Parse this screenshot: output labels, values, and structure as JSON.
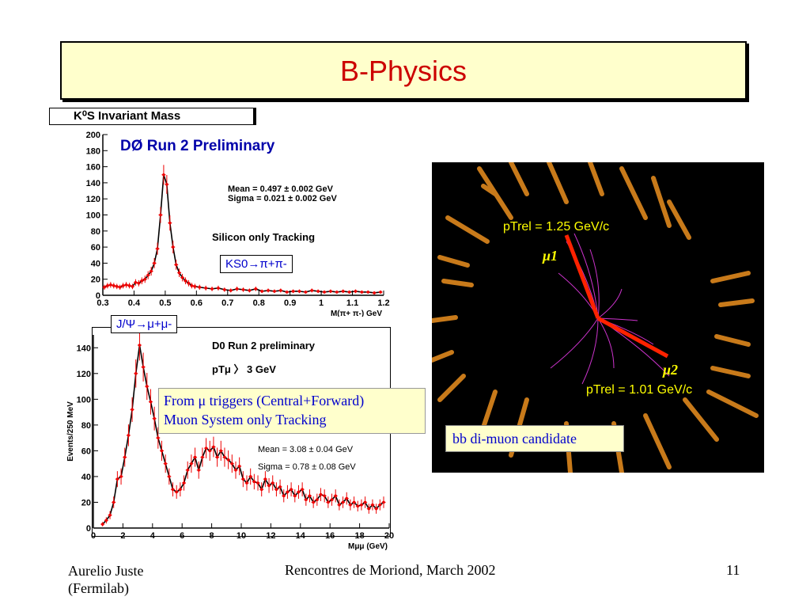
{
  "slide": {
    "title": "B-Physics",
    "footer": {
      "author": "Aurelio Juste",
      "affiliation": "(Fermilab)",
      "event": "Rencontres de Moriond, March 2002",
      "page": "11"
    }
  },
  "kshort_panel": {
    "header": "K⁰S Invariant Mass",
    "box_label": "KS0→π+π-"
  },
  "jpsi_panel": {
    "box_label": "J/Ψ→μ+μ-",
    "note_line1": "From μ triggers (Central+Forward)",
    "note_line2": "Muon System only Tracking"
  },
  "event_display": {
    "label_mu1": "μ1",
    "label_mu2": "μ2",
    "ptrel1": "pTrel = 1.25 GeV/c",
    "ptrel2": "pTrel = 1.01 GeV/c",
    "caption": "bb di-muon candidate",
    "colors": {
      "background": "#000000",
      "muon": "#ff2200",
      "track": "#cc33cc",
      "calo": "#c87a1a"
    }
  },
  "chart_data": [
    {
      "type": "scatter",
      "title": "DØ Run 2 Preliminary",
      "xlabel": "M(π+ π-) GeV",
      "ylabel": "",
      "xlim": [
        0.3,
        1.2
      ],
      "ylim": [
        0,
        200
      ],
      "xticks": [
        "0.3",
        "0.4",
        "0.5",
        "0.6",
        "0.7",
        "0.8",
        "0.9",
        "1",
        "1.1",
        "1.2"
      ],
      "yticks": [
        "0",
        "20",
        "40",
        "60",
        "80",
        "100",
        "120",
        "140",
        "160",
        "180",
        "200"
      ],
      "annotations": [
        "Mean = 0.497 ± 0.002 GeV",
        "Sigma = 0.021 ± 0.002 GeV",
        "Silicon only Tracking"
      ],
      "series": [
        {
          "x": [
            0.305,
            0.315,
            0.325,
            0.335,
            0.345,
            0.355,
            0.365,
            0.375,
            0.385,
            0.395,
            0.405,
            0.415,
            0.425,
            0.435,
            0.445,
            0.455,
            0.465,
            0.475,
            0.485,
            0.495,
            0.505,
            0.515,
            0.525,
            0.535,
            0.545,
            0.555,
            0.565,
            0.575,
            0.585,
            0.595,
            0.61,
            0.63,
            0.65,
            0.67,
            0.69,
            0.71,
            0.73,
            0.75,
            0.77,
            0.79,
            0.81,
            0.83,
            0.85,
            0.87,
            0.89,
            0.91,
            0.93,
            0.95,
            0.97,
            0.99,
            1.01,
            1.03,
            1.05,
            1.07,
            1.09,
            1.11,
            1.13,
            1.15,
            1.17,
            1.19
          ],
          "values": [
            10,
            12,
            13,
            12,
            11,
            10,
            12,
            13,
            12,
            11,
            16,
            15,
            18,
            20,
            25,
            30,
            40,
            58,
            100,
            150,
            138,
            90,
            60,
            38,
            28,
            22,
            18,
            15,
            12,
            11,
            10,
            9,
            8,
            9,
            7,
            6,
            8,
            7,
            6,
            8,
            5,
            6,
            5,
            6,
            4,
            5,
            5,
            4,
            6,
            5,
            4,
            5,
            4,
            5,
            4,
            5,
            4,
            4,
            3,
            4
          ]
        }
      ]
    },
    {
      "type": "scatter",
      "title": "D0 Run 2 preliminary",
      "xlabel": "Mμμ (GeV)",
      "ylabel": "Events/250 MeV",
      "xlim": [
        0,
        20
      ],
      "ylim": [
        0,
        150
      ],
      "xticks": [
        "0",
        "2",
        "4",
        "6",
        "8",
        "10",
        "12",
        "14",
        "16",
        "18",
        "20"
      ],
      "yticks": [
        "0",
        "20",
        "40",
        "60",
        "80",
        "100",
        "120",
        "140"
      ],
      "annotations": [
        "pTμ 〉 3 GeV",
        "Mean = 3.08 ± 0.04 GeV",
        "Sigma = 0.78 ± 0.08 GeV"
      ],
      "series": [
        {
          "x": [
            0.625,
            0.875,
            1.125,
            1.375,
            1.625,
            1.875,
            2.125,
            2.375,
            2.625,
            2.875,
            3.125,
            3.375,
            3.625,
            3.875,
            4.125,
            4.375,
            4.625,
            4.875,
            5.125,
            5.375,
            5.625,
            5.875,
            6.125,
            6.375,
            6.625,
            6.875,
            7.125,
            7.375,
            7.625,
            7.875,
            8.125,
            8.375,
            8.625,
            8.875,
            9.125,
            9.375,
            9.625,
            9.875,
            10.125,
            10.375,
            10.625,
            10.875,
            11.125,
            11.375,
            11.625,
            11.875,
            12.125,
            12.375,
            12.625,
            12.875,
            13.125,
            13.375,
            13.625,
            13.875,
            14.125,
            14.375,
            14.625,
            14.875,
            15.125,
            15.375,
            15.625,
            15.875,
            16.125,
            16.375,
            16.625,
            16.875,
            17.125,
            17.375,
            17.625,
            17.875,
            18.125,
            18.375,
            18.625,
            18.875,
            19.125,
            19.375,
            19.625
          ],
          "values": [
            3,
            6,
            10,
            20,
            38,
            40,
            55,
            72,
            92,
            120,
            142,
            125,
            110,
            98,
            85,
            70,
            60,
            50,
            40,
            30,
            28,
            30,
            35,
            45,
            50,
            55,
            45,
            55,
            62,
            60,
            63,
            55,
            60,
            55,
            53,
            50,
            45,
            48,
            38,
            35,
            40,
            36,
            35,
            30,
            38,
            33,
            35,
            30,
            32,
            25,
            28,
            30,
            25,
            28,
            30,
            22,
            25,
            20,
            22,
            26,
            25,
            20,
            22,
            25,
            18,
            20,
            23,
            18,
            20,
            17,
            18,
            20,
            15,
            18,
            15,
            18,
            20
          ]
        }
      ]
    }
  ]
}
